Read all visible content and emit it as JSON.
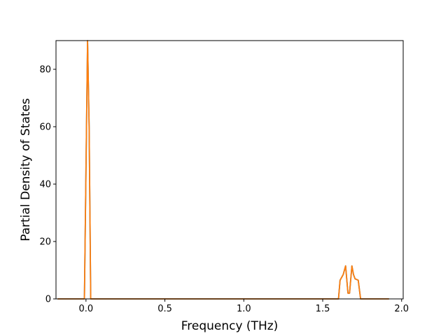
{
  "chart_data": {
    "type": "line",
    "title": "",
    "xlabel": "Frequency (THz)",
    "ylabel": "Partial Density of States",
    "xlim": [
      -0.19,
      2.01
    ],
    "ylim": [
      0,
      90
    ],
    "xticks": [
      0.0,
      0.5,
      1.0,
      1.5,
      2.0
    ],
    "xtick_labels": [
      "0.0",
      "0.5",
      "1.0",
      "1.5",
      "2.0"
    ],
    "yticks": [
      0,
      20,
      40,
      60,
      80
    ],
    "ytick_labels": [
      "0",
      "20",
      "40",
      "60",
      "80"
    ],
    "grid": false,
    "series": [
      {
        "color": "#1f77b4",
        "x": [
          -0.18,
          -0.01,
          0.01,
          0.02,
          0.03,
          1.6,
          1.61,
          1.63,
          1.645,
          1.66,
          1.67,
          1.685,
          1.695,
          1.705,
          1.725,
          1.74,
          1.75,
          1.92
        ],
        "y": [
          0,
          0,
          90,
          60,
          0,
          0,
          6.5,
          8.5,
          11.5,
          2,
          2,
          11.5,
          8.5,
          7,
          6.5,
          0,
          0,
          0
        ]
      },
      {
        "color": "#ff7f0e",
        "x": [
          -0.18,
          -0.01,
          0.01,
          0.02,
          0.03,
          1.6,
          1.61,
          1.63,
          1.645,
          1.66,
          1.67,
          1.685,
          1.695,
          1.705,
          1.725,
          1.74,
          1.75,
          1.92
        ],
        "y": [
          0,
          0,
          90,
          60,
          0,
          0,
          6.5,
          8.5,
          11.5,
          2,
          2,
          11.5,
          8.5,
          7,
          6.5,
          0,
          0,
          0
        ]
      }
    ]
  }
}
